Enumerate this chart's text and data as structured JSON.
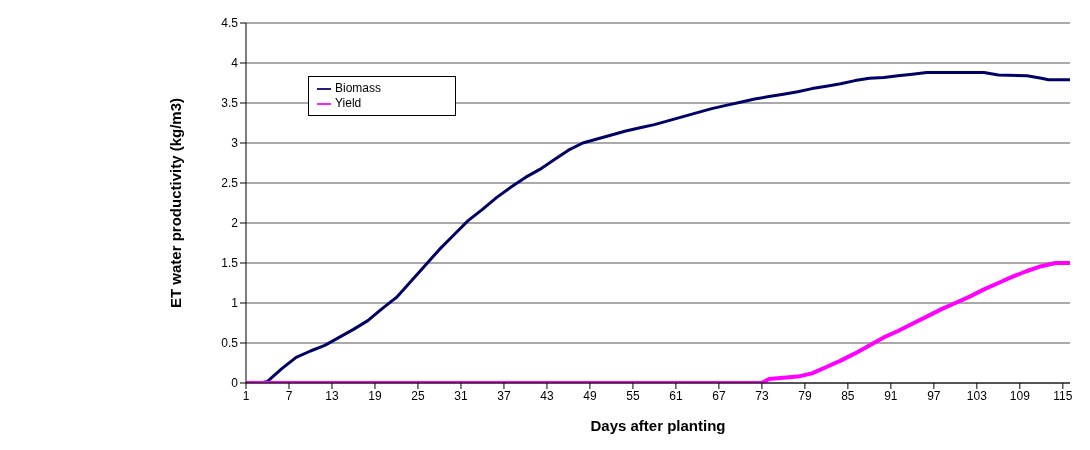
{
  "chart_data": {
    "type": "line",
    "xlabel": "Days after planting",
    "ylabel": "ET water productivity (kg/m3)",
    "xlim": [
      1,
      116
    ],
    "xticks": [
      1,
      7,
      13,
      19,
      25,
      31,
      37,
      43,
      49,
      55,
      61,
      67,
      73,
      79,
      85,
      91,
      97,
      103,
      109,
      115
    ],
    "ylim": [
      0,
      4.5
    ],
    "yticks": [
      0,
      0.5,
      1,
      1.5,
      2,
      2.5,
      3,
      3.5,
      4,
      4.5
    ],
    "grid": "y",
    "legend": "top left",
    "series": [
      {
        "name": "Biomass",
        "color": "#000066",
        "x": [
          1,
          3,
          4,
          6,
          8,
          10,
          12,
          14,
          16,
          18,
          20,
          22,
          24,
          26,
          28,
          30,
          32,
          34,
          36,
          38,
          40,
          42,
          44,
          46,
          48,
          50,
          52,
          54,
          56,
          58,
          60,
          62,
          64,
          66,
          68,
          70,
          72,
          74,
          76,
          78,
          80,
          82,
          84,
          86,
          88,
          90,
          92,
          94,
          96,
          100,
          104,
          106,
          110,
          112,
          113,
          116
        ],
        "values": [
          0,
          0,
          0.02,
          0.18,
          0.32,
          0.4,
          0.47,
          0.57,
          0.67,
          0.78,
          0.93,
          1.07,
          1.27,
          1.47,
          1.67,
          1.85,
          2.03,
          2.17,
          2.32,
          2.45,
          2.57,
          2.67,
          2.79,
          2.91,
          3.0,
          3.05,
          3.1,
          3.15,
          3.19,
          3.23,
          3.28,
          3.33,
          3.38,
          3.43,
          3.47,
          3.51,
          3.55,
          3.58,
          3.61,
          3.64,
          3.68,
          3.71,
          3.74,
          3.78,
          3.81,
          3.82,
          3.84,
          3.86,
          3.88,
          3.88,
          3.88,
          3.85,
          3.84,
          3.81,
          3.79,
          3.79
        ]
      },
      {
        "name": "Yield",
        "color": "#ff00ff",
        "x": [
          1,
          10,
          20,
          30,
          40,
          50,
          60,
          70,
          73,
          74,
          78,
          80,
          82,
          84,
          86,
          88,
          90,
          92,
          94,
          96,
          98,
          100,
          102,
          104,
          106,
          108,
          110,
          112,
          114,
          116
        ],
        "values": [
          0,
          0,
          0,
          0,
          0,
          0,
          0,
          0,
          0,
          0.05,
          0.08,
          0.12,
          0.2,
          0.28,
          0.37,
          0.47,
          0.57,
          0.65,
          0.74,
          0.83,
          0.92,
          1.0,
          1.08,
          1.17,
          1.25,
          1.33,
          1.4,
          1.46,
          1.5,
          1.5
        ]
      }
    ]
  }
}
